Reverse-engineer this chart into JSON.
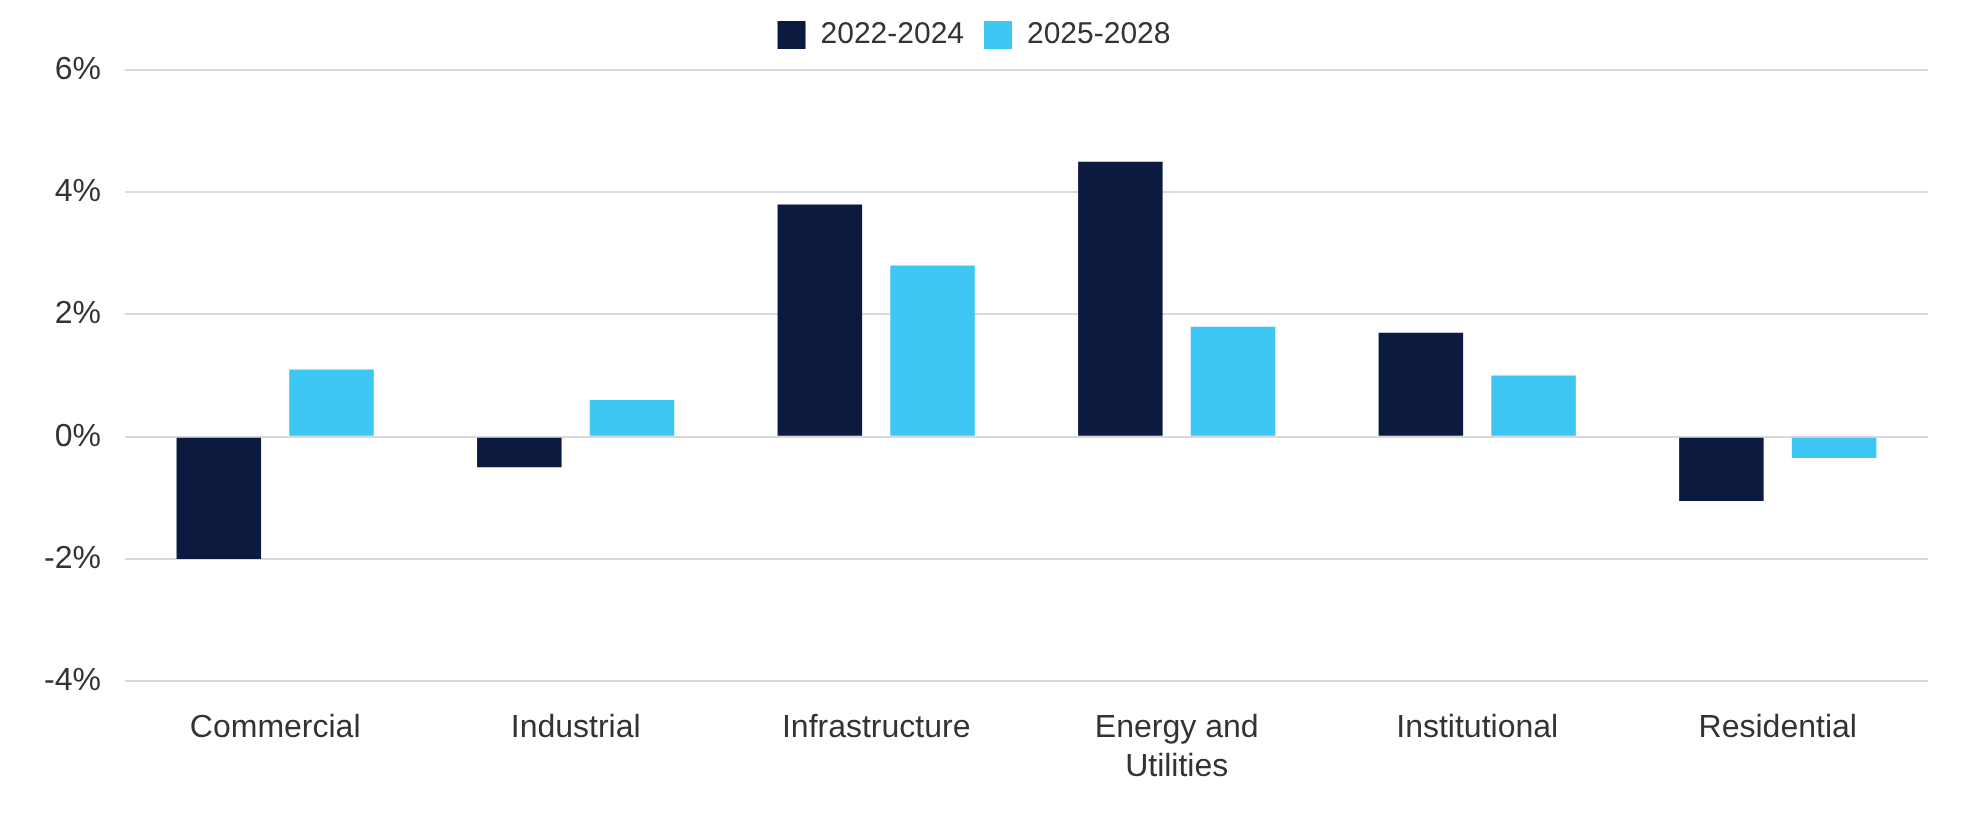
{
  "chart_data": {
    "type": "bar",
    "categories": [
      "Commercial",
      "Industrial",
      "Infrastructure",
      "Energy and Utilities",
      "Institutional",
      "Residential"
    ],
    "series": [
      {
        "name": "2022-2024",
        "color": "#0c1a40",
        "values": [
          -2.0,
          -0.5,
          3.8,
          4.5,
          1.7,
          -1.05
        ]
      },
      {
        "name": "2025-2028",
        "color": "#3ec6f5",
        "values": [
          1.1,
          0.6,
          2.8,
          1.8,
          1.0,
          -0.35
        ]
      }
    ],
    "ylim": [
      -4,
      6
    ],
    "yticks": [
      {
        "value": -4,
        "label": "-4%"
      },
      {
        "value": -2,
        "label": "-2%"
      },
      {
        "value": 0,
        "label": "0%"
      },
      {
        "value": 2,
        "label": "2%"
      },
      {
        "value": 4,
        "label": "4%"
      },
      {
        "value": 6,
        "label": "6%"
      }
    ],
    "grid": "y",
    "legend": "top"
  }
}
